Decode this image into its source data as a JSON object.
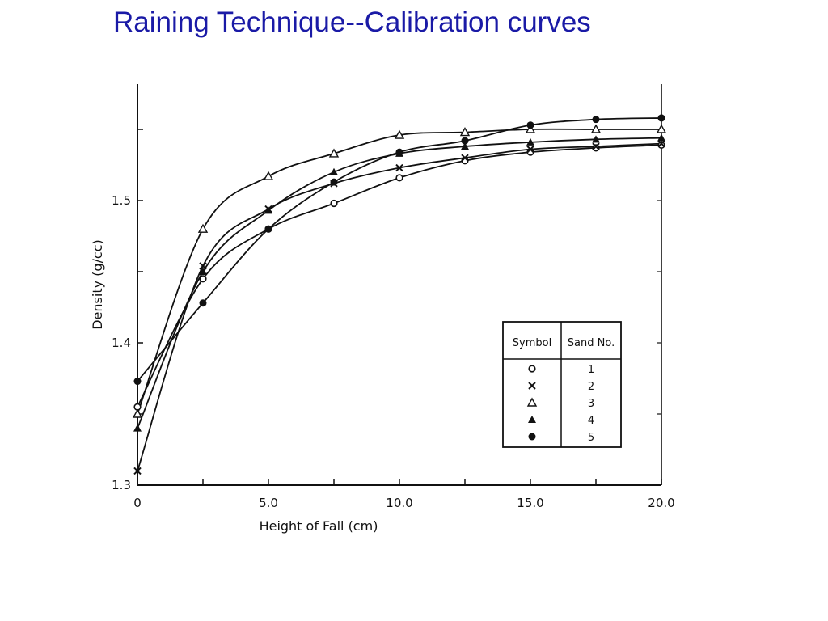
{
  "slide": {
    "title": "Raining Technique--Calibration curves"
  },
  "chart_data": {
    "type": "line",
    "xlabel": "Height of Fall (cm)",
    "ylabel": "Density (g/cc)",
    "xlim": [
      0,
      20
    ],
    "ylim": [
      1.3,
      1.58
    ],
    "x_ticks": [
      {
        "value": 0,
        "label": "0"
      },
      {
        "value": 5,
        "label": "5.0"
      },
      {
        "value": 10,
        "label": "10.0"
      },
      {
        "value": 15,
        "label": "15.0"
      },
      {
        "value": 20,
        "label": "20.0"
      }
    ],
    "y_ticks": [
      {
        "value": 1.3,
        "label": "1.3"
      },
      {
        "value": 1.4,
        "label": "1.4"
      },
      {
        "value": 1.5,
        "label": "1.5"
      }
    ],
    "grid": false,
    "legend": {
      "placement": "bottom-right",
      "headers": [
        "Symbol",
        "Sand No."
      ],
      "rows": [
        {
          "symbol": "circle-open",
          "label": "1"
        },
        {
          "symbol": "cross",
          "label": "2"
        },
        {
          "symbol": "triangle-open",
          "label": "3"
        },
        {
          "symbol": "triangle-filled",
          "label": "4"
        },
        {
          "symbol": "circle-filled",
          "label": "5"
        }
      ]
    },
    "series": [
      {
        "symbol": "circle-open",
        "x": [
          0,
          2.5,
          5,
          7.5,
          10,
          12.5,
          15,
          17.5,
          20
        ],
        "y": [
          1.355,
          1.445,
          1.48,
          1.498,
          1.516,
          1.528,
          1.534,
          1.537,
          1.539
        ]
      },
      {
        "symbol": "cross",
        "x": [
          0,
          2.5,
          5,
          7.5,
          10,
          12.5,
          15,
          17.5,
          20
        ],
        "y": [
          1.31,
          1.454,
          1.494,
          1.512,
          1.523,
          1.53,
          1.536,
          1.538,
          1.54
        ]
      },
      {
        "symbol": "triangle-open",
        "x": [
          0,
          2.5,
          5,
          7.5,
          10,
          12.5,
          15,
          17.5,
          20
        ],
        "y": [
          1.35,
          1.48,
          1.517,
          1.533,
          1.546,
          1.548,
          1.55,
          1.55,
          1.55
        ]
      },
      {
        "symbol": "triangle-filled",
        "x": [
          0,
          2.5,
          5,
          7.5,
          10,
          12.5,
          15,
          17.5,
          20
        ],
        "y": [
          1.34,
          1.45,
          1.493,
          1.52,
          1.533,
          1.538,
          1.541,
          1.543,
          1.544
        ]
      },
      {
        "symbol": "circle-filled",
        "x": [
          0,
          2.5,
          5,
          7.5,
          10,
          12.5,
          15,
          17.5,
          20
        ],
        "y": [
          1.373,
          1.428,
          1.48,
          1.513,
          1.534,
          1.542,
          1.553,
          1.557,
          1.558
        ]
      }
    ]
  }
}
